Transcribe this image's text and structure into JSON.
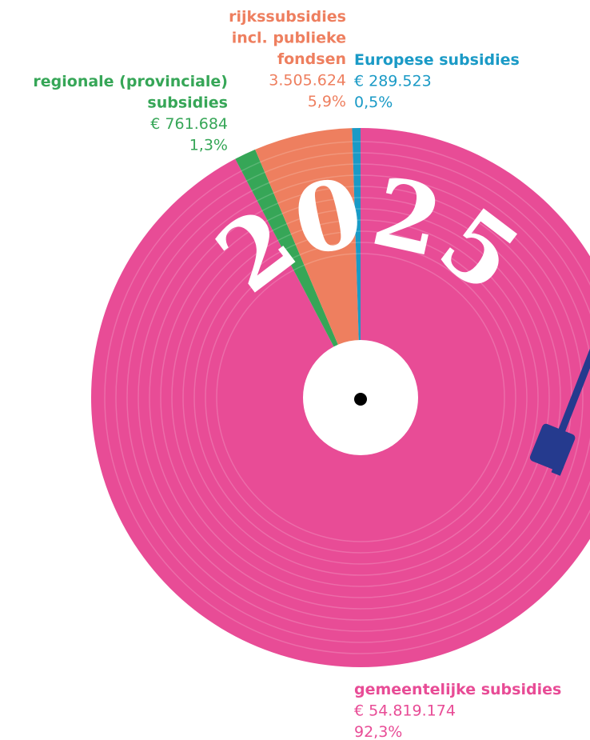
{
  "chart_data": {
    "type": "pie",
    "title": "2025",
    "categories": [
      "gemeentelijke subsidies",
      "regionale (provinciale)\nsubsidies",
      "rijkssubsidies\nincl. publieke\nfondsen",
      "Europese subsidies"
    ],
    "values": [
      92.3,
      1.3,
      5.9,
      0.5
    ],
    "value_labels": [
      "92,3%",
      "1,3%",
      "5,9%",
      "0,5%"
    ],
    "amounts": [
      54819174,
      761684,
      3505624,
      289523
    ],
    "amount_labels": [
      "€ 54.819.174",
      "€ 761.684",
      "3.505.624",
      "€ 289.523"
    ],
    "colors": [
      "#e84c96",
      "#36a657",
      "#ee7f5f",
      "#1a9ac6"
    ]
  }
}
